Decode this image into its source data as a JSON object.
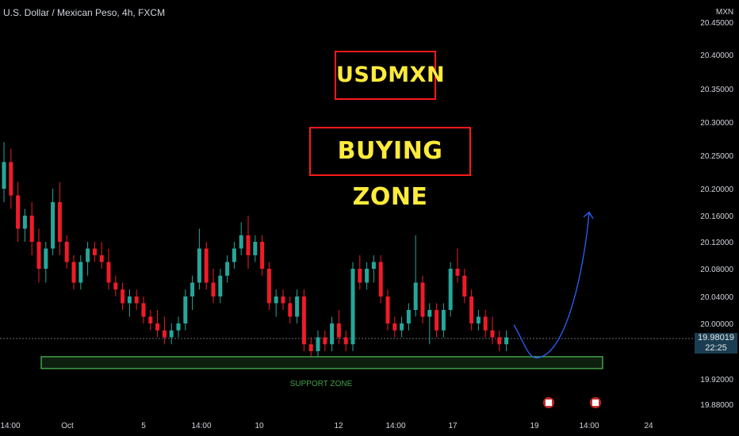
{
  "title": "U.S. Dollar / Mexican Peso, 4h, FXCM",
  "annotations": {
    "box1": "USDMXN",
    "box2": "BUYING ZONE",
    "support": "SUPPORT ZONE"
  },
  "current": {
    "price": "19.98019",
    "time": "22:25"
  },
  "colors": {
    "up": "#26a69a",
    "down": "#ef1b29",
    "support_border": "#43a047",
    "arrow": "#2962ff",
    "box_border": "#ff1a1a",
    "box_text": "#ffeb3b"
  },
  "chart_data": {
    "type": "candlestick",
    "currency_label": "MXN",
    "y_ticks": [
      19.88,
      19.92,
      20.0,
      20.04,
      20.08,
      20.12,
      20.16,
      20.2,
      20.25,
      20.3,
      20.35,
      20.4,
      20.45
    ],
    "y_tick_labels": [
      "19.88000",
      "19.92000",
      "20.00000",
      "20.04000",
      "20.08000",
      "20.12000",
      "20.16000",
      "20.20000",
      "20.25000",
      "20.30000",
      "20.35000",
      "20.40000",
      "20.45000"
    ],
    "x_tick_labels": [
      "14:00",
      "Oct",
      "5",
      "14:00",
      "10",
      "12",
      "14:00",
      "17",
      "19",
      "14:00",
      "24"
    ],
    "support_zone": [
      19.935,
      19.952
    ],
    "projection": {
      "description": "dip into support zone then rise",
      "start": 19.998,
      "low": 19.955,
      "end": 20.165
    },
    "candles": [
      [
        20.2,
        20.27,
        20.18,
        20.24
      ],
      [
        20.24,
        20.26,
        20.17,
        20.19
      ],
      [
        20.19,
        20.21,
        20.12,
        20.14
      ],
      [
        20.14,
        20.17,
        20.12,
        20.16
      ],
      [
        20.16,
        20.18,
        20.1,
        20.12
      ],
      [
        20.12,
        20.14,
        20.06,
        20.08
      ],
      [
        20.08,
        20.12,
        20.06,
        20.11
      ],
      [
        20.11,
        20.2,
        20.1,
        20.18
      ],
      [
        20.18,
        20.21,
        20.1,
        20.12
      ],
      [
        20.12,
        20.13,
        20.08,
        20.09
      ],
      [
        20.09,
        20.1,
        20.05,
        20.06
      ],
      [
        20.06,
        20.1,
        20.05,
        20.09
      ],
      [
        20.09,
        20.12,
        20.07,
        20.11
      ],
      [
        20.11,
        20.12,
        20.09,
        20.1
      ],
      [
        20.1,
        20.12,
        20.08,
        20.09
      ],
      [
        20.09,
        20.11,
        20.05,
        20.06
      ],
      [
        20.06,
        20.07,
        20.04,
        20.05
      ],
      [
        20.05,
        20.06,
        20.02,
        20.03
      ],
      [
        20.03,
        20.05,
        20.01,
        20.04
      ],
      [
        20.04,
        20.05,
        20.02,
        20.03
      ],
      [
        20.03,
        20.04,
        20.0,
        20.01
      ],
      [
        20.01,
        20.02,
        19.99,
        20.0
      ],
      [
        20.0,
        20.02,
        19.98,
        19.99
      ],
      [
        19.99,
        20.01,
        19.97,
        19.98
      ],
      [
        19.98,
        20.0,
        19.97,
        19.99
      ],
      [
        19.99,
        20.01,
        19.98,
        20.0
      ],
      [
        20.0,
        20.05,
        19.99,
        20.04
      ],
      [
        20.04,
        20.07,
        20.02,
        20.06
      ],
      [
        20.06,
        20.14,
        20.05,
        20.11
      ],
      [
        20.11,
        20.12,
        20.05,
        20.06
      ],
      [
        20.06,
        20.08,
        20.03,
        20.04
      ],
      [
        20.04,
        20.08,
        20.03,
        20.07
      ],
      [
        20.07,
        20.1,
        20.06,
        20.09
      ],
      [
        20.09,
        20.12,
        20.08,
        20.11
      ],
      [
        20.11,
        20.15,
        20.1,
        20.13
      ],
      [
        20.13,
        20.16,
        20.08,
        20.1
      ],
      [
        20.1,
        20.13,
        20.09,
        20.12
      ],
      [
        20.12,
        20.13,
        20.07,
        20.08
      ],
      [
        20.08,
        20.09,
        20.02,
        20.03
      ],
      [
        20.03,
        20.05,
        20.01,
        20.04
      ],
      [
        20.04,
        20.05,
        20.02,
        20.03
      ],
      [
        20.03,
        20.04,
        20.0,
        20.01
      ],
      [
        20.01,
        20.05,
        20.0,
        20.04
      ],
      [
        20.04,
        20.05,
        19.96,
        19.97
      ],
      [
        19.97,
        19.98,
        19.95,
        19.96
      ],
      [
        19.96,
        19.99,
        19.95,
        19.98
      ],
      [
        19.98,
        19.99,
        19.96,
        19.97
      ],
      [
        19.97,
        20.01,
        19.96,
        20.0
      ],
      [
        20.0,
        20.02,
        19.97,
        19.98
      ],
      [
        19.98,
        19.99,
        19.96,
        19.97
      ],
      [
        19.97,
        20.09,
        19.96,
        20.08
      ],
      [
        20.08,
        20.1,
        20.05,
        20.06
      ],
      [
        20.06,
        20.09,
        20.05,
        20.08
      ],
      [
        20.08,
        20.1,
        20.06,
        20.09
      ],
      [
        20.09,
        20.1,
        20.03,
        20.04
      ],
      [
        20.04,
        20.05,
        19.99,
        20.0
      ],
      [
        20.0,
        20.01,
        19.98,
        19.99
      ],
      [
        19.99,
        20.01,
        19.98,
        20.0
      ],
      [
        20.0,
        20.03,
        19.99,
        20.02
      ],
      [
        20.02,
        20.13,
        20.01,
        20.06
      ],
      [
        20.06,
        20.07,
        20.0,
        20.01
      ],
      [
        20.01,
        20.03,
        19.97,
        20.02
      ],
      [
        20.02,
        20.03,
        19.98,
        19.99
      ],
      [
        19.99,
        20.03,
        19.98,
        20.02
      ],
      [
        20.02,
        20.09,
        20.01,
        20.08
      ],
      [
        20.08,
        20.11,
        20.06,
        20.07
      ],
      [
        20.07,
        20.08,
        20.03,
        20.04
      ],
      [
        20.04,
        20.05,
        19.99,
        20.0
      ],
      [
        20.0,
        20.02,
        19.99,
        20.01
      ],
      [
        20.01,
        20.02,
        19.98,
        19.99
      ],
      [
        19.99,
        20.01,
        19.97,
        19.98
      ],
      [
        19.98,
        19.99,
        19.96,
        19.97
      ],
      [
        19.97,
        19.99,
        19.96,
        19.98
      ]
    ]
  }
}
